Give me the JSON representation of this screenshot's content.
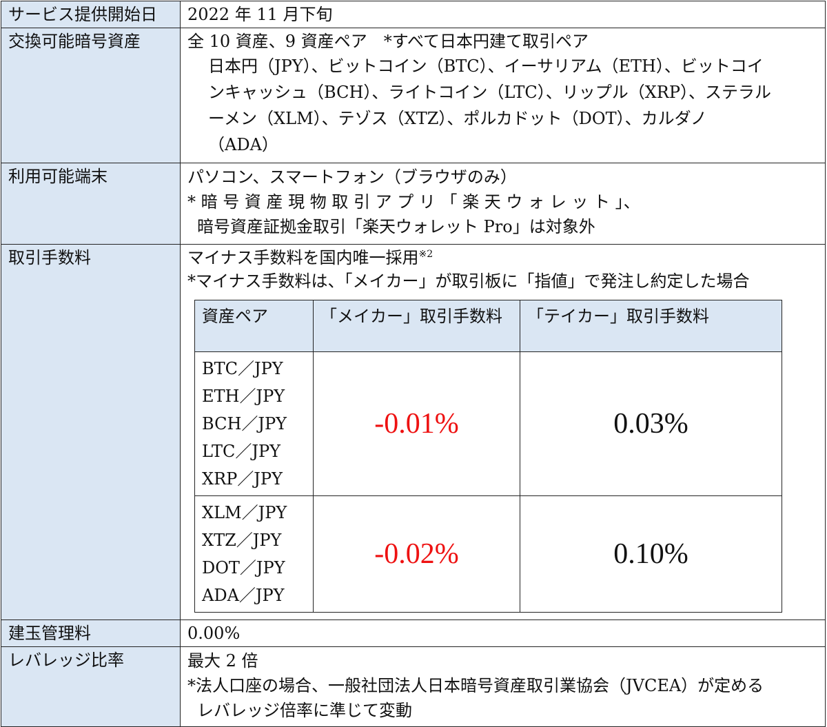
{
  "rows": {
    "start": {
      "label": "サービス提供開始日",
      "value": "2022 年 11 月下旬"
    },
    "assets": {
      "label": "交換可能暗号資産",
      "summary": "全 10 資産、9 資産ペア　*すべて日本円建て取引ペア",
      "lines": [
        "日本円（JPY）、ビットコイン（BTC）、イーサリアム（ETH）、ビットコイ",
        "ンキャッシュ（BCH）、ライトコイン（LTC）、リップル（XRP）、ステラル",
        "ーメン（XLM）、テゾス（XTZ）、ポルカドット（DOT）、カルダノ",
        "（ADA）"
      ]
    },
    "devices": {
      "label": "利用可能端末",
      "line1": "パソコン、スマートフォン（ブラウザのみ）",
      "line2": "* 暗 号 資 産 現 物 取 引 ア プ リ 「 楽 天 ウ ォ レ ッ ト 」、",
      "line3": "暗号資産証拠金取引「楽天ウォレット Pro」は対象外"
    },
    "fees": {
      "label": "取引手数料",
      "line1": "マイナス手数料を国内唯一採用",
      "line1_note": "※2",
      "line2": "*マイナス手数料は、「メイカー」が取引板に「指値」で発注し約定した場合",
      "table": {
        "headers": [
          "資産ペア",
          "「メイカー」取引手数料",
          "「テイカー」取引手数料"
        ],
        "groups": [
          {
            "pairs": [
              "BTC／JPY",
              "ETH／JPY",
              "BCH／JPY",
              "LTC／JPY",
              "XRP／JPY"
            ],
            "maker": "-0.01%",
            "taker": "0.03%"
          },
          {
            "pairs": [
              "XLM／JPY",
              "XTZ／JPY",
              "DOT／JPY",
              "ADA／JPY"
            ],
            "maker": "-0.02%",
            "taker": "0.10%"
          }
        ]
      }
    },
    "position_fee": {
      "label": "建玉管理料",
      "value": "0.00%"
    },
    "leverage": {
      "label": "レバレッジ比率",
      "line1": "最大 2 倍",
      "line2": "*法人口座の場合、一般社団法人日本暗号資産取引業協会（JVCEA）が定める",
      "line3": "レバレッジ倍率に準じて変動"
    }
  },
  "colors": {
    "label_bg": "#dae6f3",
    "negative_fee": "#ee1111"
  }
}
